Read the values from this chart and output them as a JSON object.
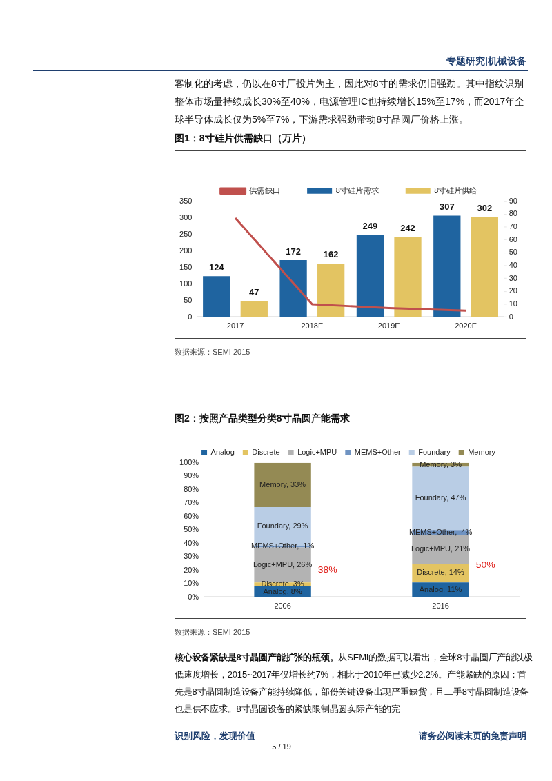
{
  "chart_data": [
    {
      "type": "other",
      "annotations": [
        "专题研究|机械设备",
        "客制化的考虑，仍以在8寸厂投片为主，因此对8寸的需求仍旧强劲。其中指纹识别整体市场量持续成长30%至40%，电源管理IC也持续增长15%至17%，而2017年全球半导体成长仅为5%至7%，下游需求强劲带动8寸晶圆厂价格上涨。"
      ]
    },
    {
      "type": "bar",
      "title": "图1：8寸硅片供需缺口（万片）",
      "categories": [
        "2017",
        "2018E",
        "2019E",
        "2020E"
      ],
      "series": [
        {
          "name": "8寸硅片需求",
          "color": "#1f64a0",
          "values": [
            124,
            172,
            249,
            307
          ],
          "value_labels": [
            "124",
            "172",
            "249",
            "307"
          ]
        },
        {
          "name": "8寸硅片供给",
          "color": "#e3c462",
          "values": [
            47,
            162,
            242,
            302
          ],
          "value_labels": [
            "47",
            "162",
            "242",
            "302"
          ]
        },
        {
          "name": "供需缺口",
          "type": "line",
          "axis": "y2",
          "color": "#c0504d",
          "values": [
            77,
            10,
            7,
            5
          ]
        }
      ],
      "ylim": [
        0,
        350
      ],
      "yticks": [
        0,
        50,
        100,
        150,
        200,
        250,
        300,
        350
      ],
      "y2lim": [
        0,
        90
      ],
      "y2ticks": [
        0,
        10,
        20,
        30,
        40,
        50,
        60,
        70,
        80,
        90
      ],
      "grid": false,
      "legend": "top",
      "marker": "none",
      "annotations": [
        "数据来源：SEMI 2015"
      ]
    },
    {
      "type": "bar",
      "title": "图2：按照产品类型分类8寸晶圆产能需求",
      "categories": [
        "2006",
        "2016"
      ],
      "stacked": true,
      "series": [
        {
          "name": "Analog",
          "color": "#1f64a0",
          "values": [
            8,
            11
          ],
          "value_labels": [
            "Analog, 8%",
            "Analog, 11%"
          ]
        },
        {
          "name": "Discrete",
          "color": "#e3c462",
          "values": [
            3,
            14
          ],
          "value_labels": [
            "Discrete, 3%",
            "Discrete, 14%"
          ]
        },
        {
          "name": "Logic+MPU",
          "color": "#b3b3b3",
          "values": [
            26,
            21
          ],
          "value_labels": [
            "Logic+MPU, 26%",
            "Logic+MPU, 21%"
          ]
        },
        {
          "name": "MEMS+Other",
          "color": "#6f93c2",
          "values": [
            1,
            4
          ],
          "value_labels": [
            "MEMS+Other,  1%",
            "MEMS+Other,  4%"
          ]
        },
        {
          "name": "Foundary",
          "color": "#b9cde5",
          "values": [
            29,
            47
          ],
          "value_labels": [
            "Foundary, 29%",
            "Foundary, 47%"
          ]
        },
        {
          "name": "Memory",
          "color": "#948a54",
          "values": [
            33,
            3
          ],
          "value_labels": [
            "Memory, 33%",
            "Memory, 3%"
          ]
        }
      ],
      "ylim": [
        0,
        100
      ],
      "yticks": [
        {
          "value": 0,
          "label": "0%"
        },
        {
          "value": 10,
          "label": "10%"
        },
        {
          "value": 20,
          "label": "20%"
        },
        {
          "value": 30,
          "label": "30%"
        },
        {
          "value": 40,
          "label": "40%"
        },
        {
          "value": 50,
          "label": "50%"
        },
        {
          "value": 60,
          "label": "60%"
        },
        {
          "value": 70,
          "label": "70%"
        },
        {
          "value": 80,
          "label": "80%"
        },
        {
          "value": 90,
          "label": "90%"
        },
        {
          "value": 100,
          "label": "100%"
        }
      ],
      "grid": false,
      "legend": "top",
      "annotations": [
        "38%",
        "50%",
        "数据来源：SEMI 2015"
      ]
    },
    {
      "type": "other",
      "annotations": [
        "核心设备紧缺是8寸晶圆产能扩张的瓶颈。",
        "从SEMI的数据可以看出，全球8寸晶圆厂产能以极低速度增长，2015~2017年仅增长约7%，相比于2010年已减少2.2%。产能紧缺的原因：首先是8寸晶圆制造设备产能持续降低，部份关键设备出现严重缺货，且二手8寸晶圆制造设备也是供不应求。8寸晶圆设备的紧缺限制晶圆实际产能的完",
        "识别风险，发现价值",
        "5 / 19",
        "请务必阅读末页的免责声明"
      ]
    }
  ]
}
